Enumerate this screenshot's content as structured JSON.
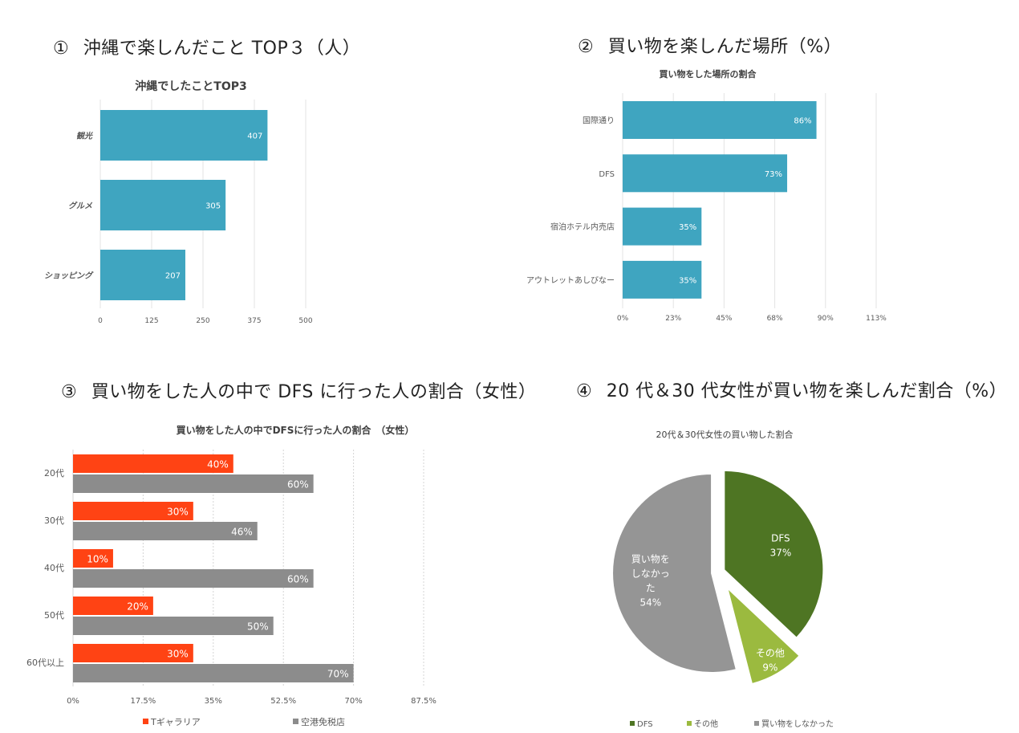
{
  "sections": [
    {
      "number": "①",
      "title": "沖縄で楽しんだこと TOP３（人）"
    },
    {
      "number": "②",
      "title": "買い物を楽しんだ場所（%）"
    },
    {
      "number": "③",
      "title": "買い物をした人の中で DFS に行った人の割合（女性）"
    },
    {
      "number": "④",
      "title": "20 代＆30 代女性が買い物を楽しんだ割合（%）"
    }
  ],
  "chart_data": [
    {
      "type": "bar",
      "orientation": "horizontal",
      "title": "沖縄でしたことTOP3",
      "categories": [
        "観光",
        "グルメ",
        "ショッピング"
      ],
      "values": [
        407,
        305,
        207
      ],
      "data_labels": [
        "407",
        "305",
        "207"
      ],
      "xlim": [
        0,
        500
      ],
      "xticks": [
        "0",
        "125",
        "250",
        "375",
        "500"
      ],
      "grid": true,
      "colors": {
        "bar": "#3fa5c0"
      }
    },
    {
      "type": "bar",
      "orientation": "horizontal",
      "title": "買い物をした場所の割合",
      "categories": [
        "国際通り",
        "DFS",
        "宿泊ホテル内売店",
        "アウトレットあしびなー"
      ],
      "values": [
        86,
        73,
        35,
        35
      ],
      "data_labels": [
        "86%",
        "73%",
        "35%",
        "35%"
      ],
      "xlim": [
        0,
        112.5
      ],
      "xticks": [
        "0%",
        "23%",
        "45%",
        "68%",
        "90%",
        "113%"
      ],
      "grid": true,
      "colors": {
        "bar": "#3fa5c0"
      }
    },
    {
      "type": "bar",
      "orientation": "horizontal",
      "title": "買い物をした人の中でDFSに行った人の割合　（女性）",
      "categories": [
        "20代",
        "30代",
        "40代",
        "50代",
        "60代以上"
      ],
      "series": [
        {
          "name": "Tギャラリア",
          "values": [
            40,
            30,
            10,
            20,
            30
          ],
          "labels": [
            "40%",
            "30%",
            "10%",
            "20%",
            "30%"
          ],
          "color": "#ff4314"
        },
        {
          "name": "空港免税店",
          "values": [
            60,
            46,
            60,
            50,
            70
          ],
          "labels": [
            "60%",
            "46%",
            "60%",
            "50%",
            "70%"
          ],
          "color": "#8c8c8c"
        }
      ],
      "xlim": [
        0,
        87.5
      ],
      "xticks": [
        "0%",
        "17.5%",
        "35%",
        "52.5%",
        "70%",
        "87.5%"
      ],
      "grid": true,
      "legend": "bottom"
    },
    {
      "type": "pie",
      "title": "20代＆30代女性の買い物した割合",
      "slices": [
        {
          "name": "DFS",
          "value": 37,
          "label": [
            "DFS",
            "37%"
          ],
          "color": "#4e7523"
        },
        {
          "name": "その他",
          "value": 9,
          "label": [
            "その他",
            "9%"
          ],
          "color": "#9bba3f"
        },
        {
          "name": "買い物をしなかった",
          "value": 54,
          "label": [
            "買い物を",
            "しなかっ",
            "た",
            "54%"
          ],
          "color": "#959595"
        }
      ],
      "exploded": true,
      "legend": "bottom"
    }
  ]
}
